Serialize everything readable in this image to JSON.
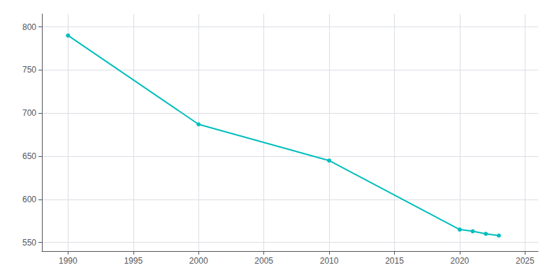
{
  "chart_data": {
    "type": "line",
    "x": [
      1990,
      2000,
      2010,
      2020,
      2021,
      2022,
      2023
    ],
    "values": [
      790,
      687,
      645,
      565,
      563,
      560,
      558
    ],
    "color": "#00BEBE",
    "marker": "circle",
    "xlim": [
      1988,
      2026
    ],
    "xticks": [
      1990,
      1995,
      2000,
      2005,
      2010,
      2015,
      2020,
      2025
    ],
    "ylim": [
      540,
      815
    ],
    "yticks": [
      550,
      600,
      650,
      700,
      750,
      800
    ],
    "grid": true
  }
}
